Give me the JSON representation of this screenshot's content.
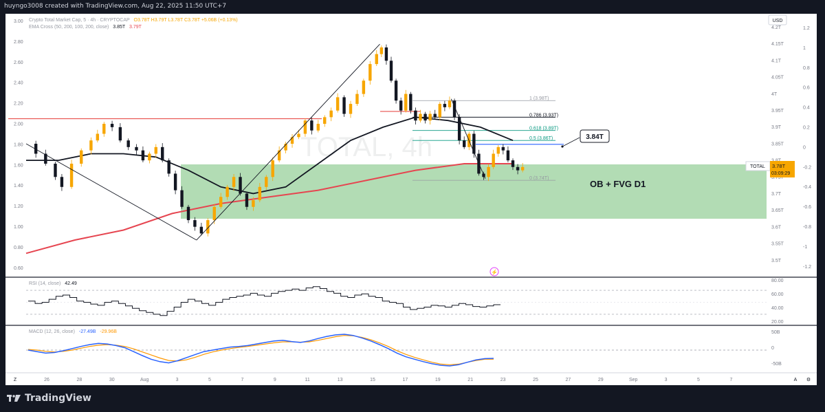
{
  "caption": "huyngo3008 created with TradingView.com, Aug 22, 2025 11:50 UTC+7",
  "footer_brand": "TradingView",
  "currency_button": "USD",
  "legend": {
    "line1_prefix": "Crypto Total Market Cap, 5 · 4h · CRYPTOCAP",
    "ohlc": "O3.78T H3.79T L3.78T C3.78T +5.06B (+0.13%)",
    "line2_prefix": "EMA Cross (50, 200, 100, 200, close)",
    "ema_fast": "3.85T",
    "ema_slow": "3.79T"
  },
  "watermark": "TOTAL, 4h",
  "left_axis_labels": [
    "3.00",
    "2.80",
    "2.60",
    "2.40",
    "2.20",
    "2.00",
    "1.80",
    "1.60",
    "1.40",
    "1.20",
    "1.00",
    "0.80",
    "0.60"
  ],
  "right_axis_labels": [
    "4.2T",
    "4.15T",
    "4.1T",
    "4.05T",
    "4T",
    "3.95T",
    "3.9T",
    "3.85T",
    "3.8T",
    "3.75T",
    "3.7T",
    "3.65T",
    "3.6T",
    "3.55T",
    "3.5T"
  ],
  "far_right_labels": [
    "1.2",
    "1",
    "0.8",
    "0.6",
    "0.4",
    "0.2",
    "0",
    "-0.2",
    "-0.4",
    "-0.6",
    "-0.8",
    "-1",
    "-1.2"
  ],
  "price_tag": {
    "symbol": "TOTAL",
    "price": "3.78T",
    "countdown": "03:09:29"
  },
  "callout": "3.84T",
  "zone_label": "OB + FVG D1",
  "fib_levels": [
    {
      "label": "1 (3.98T)",
      "value": 3.98,
      "color": "#9598a1"
    },
    {
      "label": "0.786 (3.93T)",
      "value": 3.93,
      "color": "#131722"
    },
    {
      "label": "0.618 (3.89T)",
      "value": 3.89,
      "color": "#089981"
    },
    {
      "label": "0.5 (3.86T)",
      "value": 3.86,
      "color": "#089981"
    },
    {
      "label": "0 (3.74T)",
      "value": 3.74,
      "color": "#9598a1"
    }
  ],
  "rsi": {
    "label": "RSI (14, close)",
    "value": "42.49",
    "axis": [
      "80.00",
      "60.00",
      "40.00",
      "20.00"
    ]
  },
  "macd": {
    "label": "MACD (12, 26, close)",
    "macd": "-27.49B",
    "signal": "-29.96B",
    "axis": [
      "50B",
      "0",
      "-50B"
    ]
  },
  "x_labels": [
    "26",
    "28",
    "30",
    "Aug",
    "3",
    "5",
    "7",
    "9",
    "11",
    "13",
    "15",
    "17",
    "19",
    "21",
    "23",
    "25",
    "27",
    "29",
    "Sep",
    "3",
    "5",
    "7"
  ],
  "axis_corner": {
    "left": "Z",
    "right1": "A",
    "right2": "⚙"
  },
  "colors": {
    "candle_up": "#f7a600",
    "candle_down": "#131722",
    "ema_fast": "#131722",
    "ema_slow": "#e64550",
    "zone": "#a5d6a7",
    "rsi_line": "#131722",
    "macd_line": "#2962ff",
    "signal_line": "#ff9800",
    "resistance": "#e53935",
    "blue_level": "#2962ff"
  },
  "chart_data": {
    "type": "candlestick",
    "title": "Crypto Total Market Cap, 5 · 4h · CRYPTOCAP",
    "units": "USD trillions",
    "ylim": [
      3.5,
      4.2
    ],
    "x_ticks": [
      "26",
      "28",
      "30",
      "Aug",
      "3",
      "5",
      "7",
      "9",
      "11",
      "13",
      "15",
      "17",
      "19",
      "21",
      "23"
    ],
    "series": [
      {
        "name": "EMA 50",
        "values_key": "ema_fast"
      },
      {
        "name": "EMA 200",
        "values_key": "ema_slow"
      }
    ],
    "key_points": [
      {
        "date": "Jul 24",
        "close": 3.85
      },
      {
        "date": "Jul 28",
        "close": 3.91
      },
      {
        "date": "Aug 3",
        "close": 3.59
      },
      {
        "date": "Aug 14",
        "close": 4.14
      },
      {
        "date": "Aug 18",
        "close": 3.97
      },
      {
        "date": "Aug 19",
        "close": 3.76
      },
      {
        "date": "Aug 22",
        "close": 3.78
      }
    ],
    "levels": [
      {
        "name": "resistance",
        "value": 3.915
      },
      {
        "name": "fib 1",
        "value": 3.98
      },
      {
        "name": "fib 0.786",
        "value": 3.93
      },
      {
        "name": "fib 0.618",
        "value": 3.89
      },
      {
        "name": "fib 0.5",
        "value": 3.86
      },
      {
        "name": "fib 0",
        "value": 3.74
      },
      {
        "name": "target",
        "value": 3.84
      }
    ],
    "zone": {
      "name": "OB + FVG D1",
      "from": 3.66,
      "to": 3.8
    },
    "last": {
      "price": 3.78,
      "ema_fast": 3.85,
      "ema_slow": 3.79
    },
    "rsi_last": 42.49,
    "macd_last": {
      "macd": -27.49,
      "signal": -29.96
    }
  }
}
